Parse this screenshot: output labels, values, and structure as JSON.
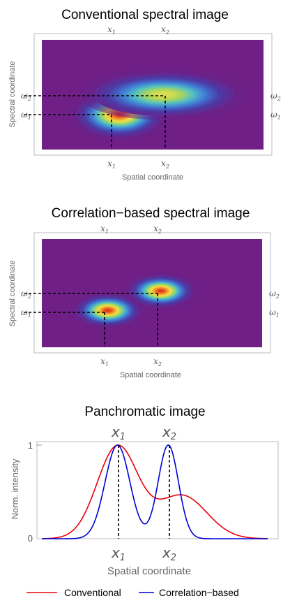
{
  "panels": [
    {
      "title": "Conventional spectral image",
      "xlabel": "Spatial coordinate",
      "ylabel": "Spectral coordinate",
      "x_ticks": [
        {
          "base": "x",
          "sub": "1"
        },
        {
          "base": "x",
          "sub": "2"
        }
      ],
      "y_ticks": [
        {
          "base": "ω",
          "sub": "2"
        },
        {
          "base": "ω",
          "sub": "1"
        }
      ]
    },
    {
      "title": "Correlation−based spectral image",
      "xlabel": "Spatial coordinate",
      "ylabel": "Spectral coordinate",
      "x_ticks": [
        {
          "base": "x",
          "sub": "1"
        },
        {
          "base": "x",
          "sub": "2"
        }
      ],
      "y_ticks": [
        {
          "base": "ω",
          "sub": "2"
        },
        {
          "base": "ω",
          "sub": "1"
        }
      ]
    }
  ],
  "chart_data": [
    {
      "type": "heatmap",
      "title": "Conventional spectral image",
      "xlabel": "Spatial coordinate",
      "ylabel": "Spectral coordinate",
      "colormap": "rainbow",
      "background": "#6f1f86",
      "peaks": [
        {
          "name": "x1,ω1",
          "x": 0.35,
          "y": 0.32,
          "sx": 0.08,
          "sy": 0.085,
          "amp": 1.0
        },
        {
          "name": "x2,ω2",
          "x": 0.55,
          "y": 0.5,
          "sx": 0.14,
          "sy": 0.085,
          "amp": 0.72
        }
      ],
      "x_ticks": [
        0.35,
        0.59
      ],
      "y_ticks": [
        0.32,
        0.5
      ],
      "xlim": [
        0,
        1
      ],
      "ylim": [
        0,
        1
      ]
    },
    {
      "type": "heatmap",
      "title": "Correlation−based spectral image",
      "xlabel": "Spatial coordinate",
      "ylabel": "Spectral coordinate",
      "colormap": "rainbow",
      "background": "#6f1f86",
      "peaks": [
        {
          "name": "x1,ω1",
          "x": 0.3,
          "y": 0.34,
          "sx": 0.06,
          "sy": 0.06,
          "amp": 1.0
        },
        {
          "name": "x2,ω2",
          "x": 0.54,
          "y": 0.52,
          "sx": 0.06,
          "sy": 0.06,
          "amp": 1.0
        }
      ],
      "x_ticks": [
        0.3,
        0.54
      ],
      "y_ticks": [
        0.34,
        0.52
      ],
      "xlim": [
        0,
        1
      ],
      "ylim": [
        0,
        1
      ]
    },
    {
      "type": "line",
      "title": "Panchromatic image",
      "xlabel": "Spatial coordinate",
      "ylabel": "Norm. intensity",
      "xlim": [
        0,
        1
      ],
      "ylim": [
        0,
        1
      ],
      "y_ticks": [
        0,
        1
      ],
      "x_ticks": [
        {
          "value": 0.335,
          "base": "x",
          "sub": "1"
        },
        {
          "value": 0.56,
          "base": "x",
          "sub": "2"
        }
      ],
      "series": [
        {
          "name": "Conventional",
          "color": "#e8000b",
          "kind": "conventional",
          "components": [
            {
              "mu": 0.335,
              "sigma": 0.09,
              "amp": 1.0
            },
            {
              "mu": 0.62,
              "sigma": 0.11,
              "amp": 0.47
            }
          ]
        },
        {
          "name": "Correlation−based",
          "color": "#0000d4",
          "kind": "correlation",
          "components": [
            {
              "mu": 0.335,
              "sigma": 0.055,
              "amp": 1.0
            },
            {
              "mu": 0.56,
              "sigma": 0.045,
              "amp": 1.0
            }
          ]
        }
      ],
      "legend_position": "bottom"
    }
  ],
  "panchromatic": {
    "title": "Panchromatic image",
    "ylabel": "Norm. intensity",
    "xlabel": "Spatial coordinate",
    "y_tick_top": "1",
    "y_tick_bottom": "0",
    "x_ticks": [
      {
        "base": "x",
        "sub": "1"
      },
      {
        "base": "x",
        "sub": "2"
      }
    ]
  },
  "legend": [
    {
      "label": "Conventional",
      "color": "#e8000b"
    },
    {
      "label": "Correlation−based",
      "color": "#0000d4"
    }
  ]
}
